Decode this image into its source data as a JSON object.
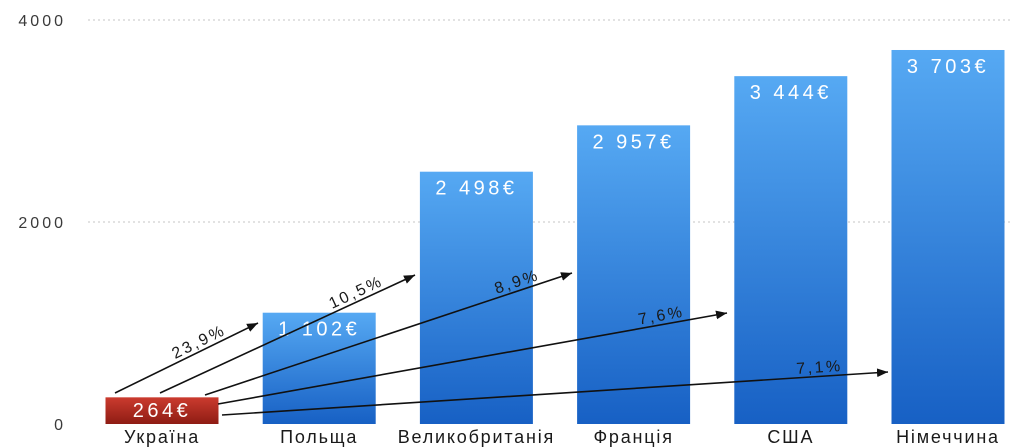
{
  "chart_data": {
    "type": "bar",
    "categories": [
      "Україна",
      "Польща",
      "Великобританія",
      "Франція",
      "США",
      "Німеччина"
    ],
    "values": [
      264,
      1102,
      2498,
      2957,
      3444,
      3703
    ],
    "data_labels": [
      "264€",
      "1 102€",
      "2 498€",
      "2 957€",
      "3 444€",
      "3 703€"
    ],
    "highlight_index": 0,
    "ylim": [
      0,
      4000
    ],
    "yticks": [
      0,
      2000,
      4000
    ],
    "grid": true,
    "legend": false,
    "annotations": [
      {
        "from": 0,
        "to": 1,
        "label": "23,9%"
      },
      {
        "from": 0,
        "to": 2,
        "label": "10,5%"
      },
      {
        "from": 0,
        "to": 3,
        "label": "8,9%"
      },
      {
        "from": 0,
        "to": 4,
        "label": "7,6%"
      },
      {
        "from": 0,
        "to": 5,
        "label": "7,1%"
      }
    ],
    "colors": {
      "bar_top": "#56a9f3",
      "bar_bottom": "#1760c4",
      "highlight_top": "#cb3b2e",
      "highlight_bottom": "#8e1c14",
      "arrow": "#111111"
    }
  }
}
